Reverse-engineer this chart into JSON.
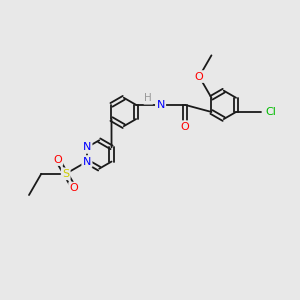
{
  "background_color": "#e8e8e8",
  "bond_color": "#1a1a1a",
  "atom_colors": {
    "N": "#0000ff",
    "O": "#ff0000",
    "S": "#cccc00",
    "Cl": "#00bb00",
    "H": "#999999",
    "C": "#1a1a1a"
  },
  "font_size": 8.0,
  "lw": 1.3
}
